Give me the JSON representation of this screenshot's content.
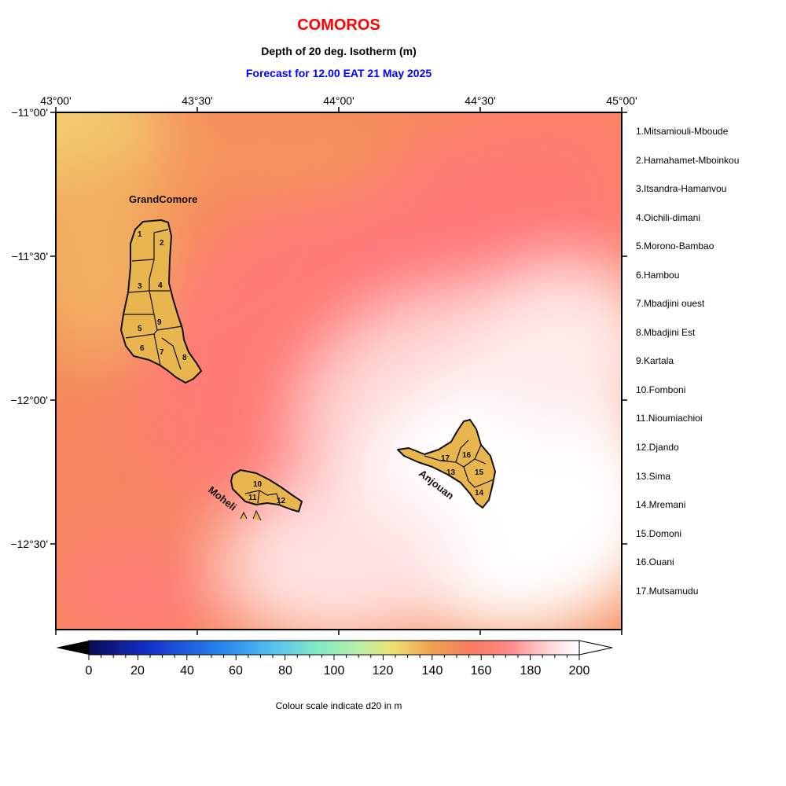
{
  "title": "COMOROS",
  "subtitle": "Depth of 20 deg. Isotherm (m)",
  "forecast": "Forecast for  12.00 EAT 21 May 2025",
  "colors": {
    "title": "#ff0000",
    "forecast": "#0000ff",
    "land": "#e8b54e"
  },
  "axes": {
    "lon_ticks": [
      "43°00'",
      "43°30'",
      "44°00'",
      "44°30'",
      "45°00'"
    ],
    "lat_ticks": [
      "−11°00'",
      "−11°30'",
      "−12°00'",
      "−12°30'"
    ]
  },
  "island_labels": {
    "grand_comore": "GrandComore",
    "moheli": "Moheli",
    "anjouan": "Anjouan"
  },
  "regions": [
    "1.Mitsamiouli-Mboude",
    "2.Hamahamet-Mboinkou",
    "3.Itsandra-Hamanvou",
    "4.Oichili-dimani",
    "5.Morono-Bambao",
    "6.Hambou",
    "7.Mbadjini ouest",
    "8.Mbadjini Est",
    "9.Kartala",
    "10.Fomboni",
    "11.Nioumiachioi",
    "12.Djando",
    "13.Sima",
    "14.Mremani",
    "15.Domoni",
    "16.Ouani",
    "17.Mutsamudu"
  ],
  "region_numbers": [
    "1",
    "2",
    "3",
    "4",
    "5",
    "6",
    "7",
    "8",
    "9",
    "10",
    "11",
    "12",
    "13",
    "14",
    "15",
    "16",
    "17"
  ],
  "colorbar": {
    "ticks": [
      "0",
      "20",
      "40",
      "60",
      "80",
      "100",
      "120",
      "140",
      "160",
      "180",
      "200"
    ],
    "label": "Colour scale indicate d20 in m"
  }
}
